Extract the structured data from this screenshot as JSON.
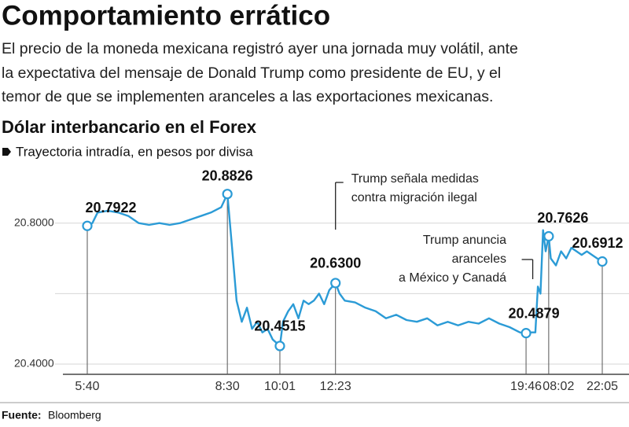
{
  "header": {
    "title": "Comportamiento errático",
    "paragraph": [
      "El precio de la moneda mexicana registró ayer una jornada muy volátil, ante",
      "la expectativa del mensaje de Donald Trump como presidente de EU, y el",
      "temor de que se implementen aranceles a las exportaciones mexicanas."
    ]
  },
  "chart_data": {
    "type": "line",
    "title": "Dólar interbancario en el Forex",
    "subtitle": "Trayectoria intradía, en pesos por divisa",
    "x": [
      0,
      1,
      2,
      4,
      6,
      8,
      10,
      12,
      14,
      16,
      18,
      20,
      22,
      24,
      26,
      27.2,
      28,
      29,
      30,
      31,
      32,
      33,
      34,
      35,
      36,
      37.4,
      38,
      39,
      40,
      41,
      42,
      43,
      44,
      45,
      46,
      47,
      48.2,
      49,
      50,
      52,
      54,
      56,
      58,
      60,
      62,
      64,
      66,
      68,
      70,
      72,
      74,
      76,
      78,
      80,
      82,
      84,
      85.2,
      86,
      87,
      87.5,
      88,
      88.5,
      89,
      89.6,
      90,
      91,
      92,
      93,
      94,
      95,
      96,
      97,
      98,
      99,
      100
    ],
    "series": [
      {
        "color": "#2b9bd6",
        "values": [
          20.7922,
          20.8,
          20.83,
          20.835,
          20.83,
          20.82,
          20.8,
          20.795,
          20.8,
          20.795,
          20.8,
          20.81,
          20.82,
          20.83,
          20.845,
          20.8826,
          20.75,
          20.58,
          20.52,
          20.56,
          20.5,
          20.52,
          20.49,
          20.5,
          20.47,
          20.4515,
          20.52,
          20.55,
          20.57,
          20.53,
          20.58,
          20.57,
          20.58,
          20.6,
          20.57,
          20.61,
          20.63,
          20.6,
          20.58,
          20.575,
          20.56,
          20.55,
          20.53,
          20.54,
          20.525,
          20.52,
          20.53,
          20.51,
          20.52,
          20.51,
          20.52,
          20.515,
          20.53,
          20.515,
          20.505,
          20.49,
          20.4879,
          20.49,
          20.49,
          20.62,
          20.6,
          20.78,
          20.72,
          20.7626,
          20.7,
          20.68,
          20.72,
          20.7,
          20.73,
          20.72,
          20.71,
          20.72,
          20.71,
          20.7,
          20.6912
        ]
      }
    ],
    "points": {
      "x": [
        0,
        27.2,
        37.4,
        48.2,
        85.2,
        89.6,
        100
      ],
      "values": [
        20.7922,
        20.8826,
        20.4515,
        20.63,
        20.4879,
        20.7626,
        20.6912
      ],
      "value_labels": [
        "20.7922",
        "20.8826",
        "20.4515",
        "20.6300",
        "20.4879",
        "20.7626",
        "20.6912"
      ]
    },
    "xlim": [
      0,
      100
    ],
    "xticks": [
      {
        "value": 0,
        "label": "5:40"
      },
      {
        "value": 27.2,
        "label": "8:30"
      },
      {
        "value": 37.4,
        "label": "10:01"
      },
      {
        "value": 48.2,
        "label": "12:23"
      },
      {
        "value": 85.2,
        "label": "19:46"
      },
      {
        "value": 91.5,
        "label": "08:02"
      },
      {
        "value": 100,
        "label": "22:05"
      }
    ],
    "ylim": [
      20.38,
      20.96
    ],
    "yticks": [
      {
        "value": 20.4,
        "label": "20.4000"
      },
      {
        "value": 20.6,
        "label": null
      },
      {
        "value": 20.8,
        "label": "20.8000"
      }
    ],
    "grid": true,
    "annotations": [
      {
        "x": 48.2,
        "lines": [
          "Trump señala medidas",
          "contra migración ilegal"
        ]
      },
      {
        "x": 86.5,
        "lines": [
          "Trump anuncia",
          "aranceles",
          "a México y Canadá"
        ]
      }
    ],
    "source_label": "Fuente:",
    "source": "Bloomberg"
  }
}
